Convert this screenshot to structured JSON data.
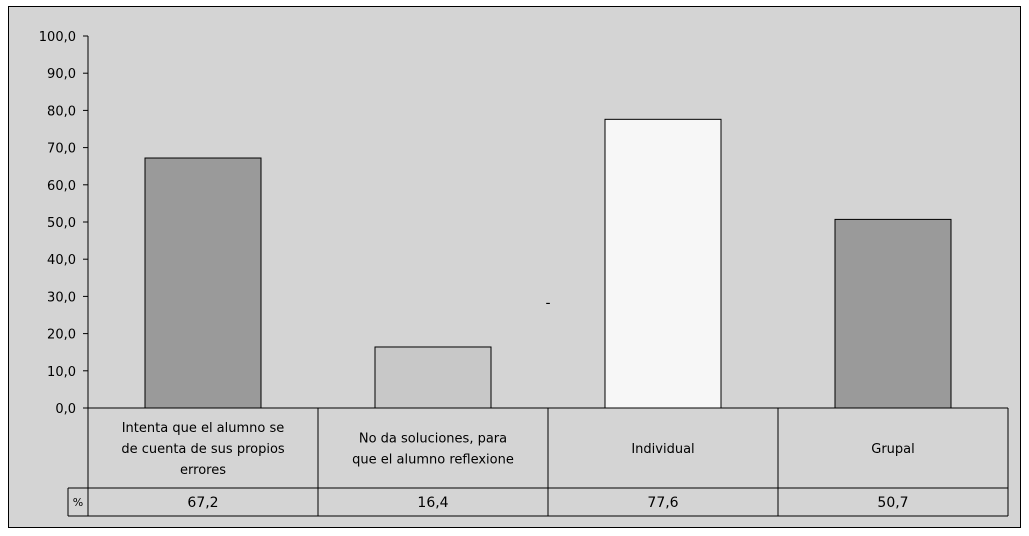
{
  "chart_data": {
    "type": "bar",
    "categories": [
      [
        "Intenta que el alumno se",
        "de cuenta de sus propios",
        "errores"
      ],
      [
        "No da soluciones, para",
        "que el alumno reflexione"
      ],
      [
        "Individual"
      ],
      [
        "Grupal"
      ]
    ],
    "series": [
      {
        "name": "%",
        "values": [
          67.2,
          16.4,
          77.6,
          50.7
        ],
        "value_labels": [
          "67,2",
          "16,4",
          "77,6",
          "50,7"
        ]
      }
    ],
    "bar_colors": [
      "#9a9a9a",
      "#c8c8c8",
      "#f7f7f7",
      "#9a9a9a"
    ],
    "ylim": [
      0,
      100
    ],
    "y_ticks": [
      "0,0",
      "10,0",
      "20,0",
      "30,0",
      "40,0",
      "50,0",
      "60,0",
      "70,0",
      "80,0",
      "90,0",
      "100,0"
    ],
    "annotation": "-",
    "grid": false,
    "legend": "data-table",
    "plot_background": "#d4d4d4"
  }
}
